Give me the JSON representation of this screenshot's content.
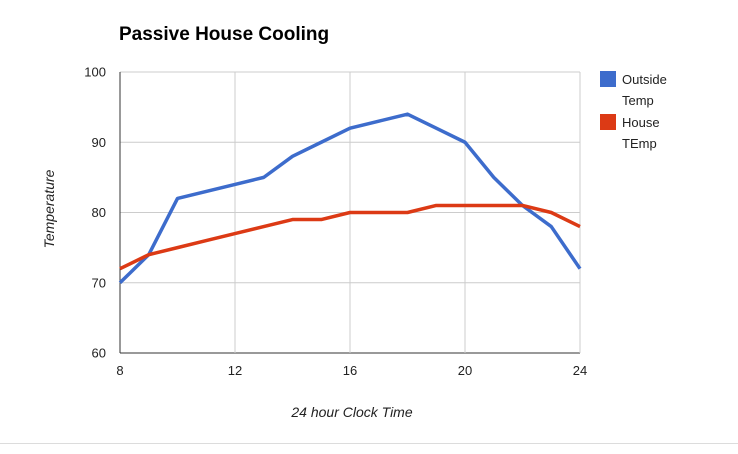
{
  "chart_data": {
    "type": "line",
    "title": "Passive House Cooling",
    "xlabel": "24 hour Clock Time",
    "ylabel": "Temperature",
    "x": [
      8,
      9,
      10,
      11,
      12,
      13,
      14,
      15,
      16,
      17,
      18,
      19,
      20,
      21,
      22,
      23,
      24
    ],
    "x_ticks": [
      8,
      12,
      16,
      20,
      24
    ],
    "y_ticks": [
      60,
      70,
      80,
      90,
      100
    ],
    "xlim": [
      8,
      24
    ],
    "ylim": [
      60,
      100
    ],
    "grid": true,
    "legend_position": "right",
    "series": [
      {
        "name": "Outside Temp",
        "color": "#3D6CCC",
        "values": [
          70,
          74,
          82,
          83,
          84,
          85,
          88,
          90,
          92,
          93,
          94,
          92,
          90,
          85,
          81,
          78,
          72
        ]
      },
      {
        "name": "House TEmp",
        "color": "#DC3A15",
        "values": [
          72,
          74,
          75,
          76,
          77,
          78,
          79,
          79,
          80,
          80,
          80,
          81,
          81,
          81,
          81,
          80,
          78
        ]
      }
    ],
    "colors": {
      "axis": "#333333",
      "gridline": "#cccccc",
      "tick_label": "#222222"
    }
  }
}
